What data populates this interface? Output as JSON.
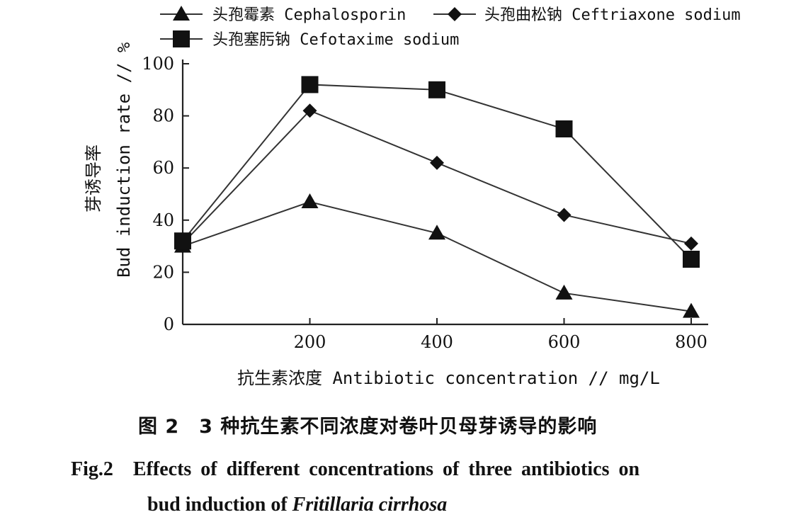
{
  "chart_data": {
    "type": "line",
    "x": [
      0,
      200,
      400,
      600,
      800
    ],
    "xticks": [
      200,
      400,
      600,
      800
    ],
    "yticks": [
      0,
      20,
      40,
      60,
      80,
      100
    ],
    "xlim": [
      0,
      820
    ],
    "ylim": [
      0,
      100
    ],
    "xlabel": "抗生素浓度 Antibiotic concentration // mg/L",
    "ylabel_cn": "芽诱导率",
    "ylabel": "Bud induction rate // %",
    "grid": false,
    "legend_position": "top",
    "series": [
      {
        "name": "头孢霉素 Cephalosporin",
        "marker": "triangle",
        "values": [
          30,
          47,
          35,
          12,
          5
        ]
      },
      {
        "name": "头孢曲松钠 Ceftriaxone sodium",
        "marker": "diamond",
        "values": [
          31,
          82,
          62,
          42,
          31
        ]
      },
      {
        "name": "头孢塞肟钠 Cefotaxime sodium",
        "marker": "square",
        "values": [
          32,
          92,
          90,
          75,
          25
        ]
      }
    ]
  },
  "caption": {
    "cn": "图 2　3 种抗生素不同浓度对卷叶贝母芽诱导的影响",
    "en_line1": "Fig.2　Effects of different concentrations of three antibiotics on",
    "en_line2_prefix": "bud induction of ",
    "en_line2_species": "Fritillaria cirrhosa"
  },
  "colors": {
    "line": "#333333",
    "marker": "#111111",
    "background": "#ffffff"
  }
}
